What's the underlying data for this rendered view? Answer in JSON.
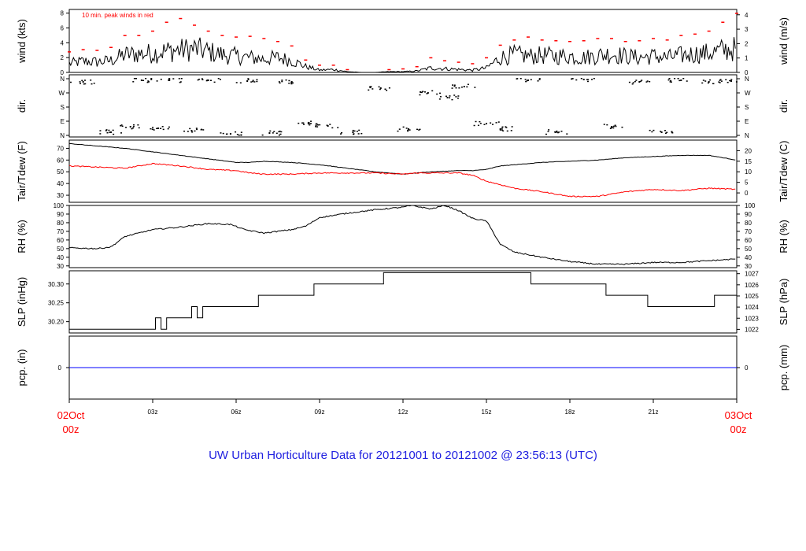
{
  "title": "UW Urban Horticulture Data for 20121001  to  20121002 @ 23:56:13  (UTC)",
  "x_axis": {
    "start_date": "02Oct",
    "start_time": "00z",
    "end_date": "03Oct",
    "end_time": "00z",
    "ticks": [
      "03z",
      "06z",
      "09z",
      "12z",
      "15z",
      "18z",
      "21z"
    ]
  },
  "colors": {
    "primary": "#000000",
    "secondary": "#ff0000",
    "precip": "#0000ff",
    "title": "#2020e0"
  },
  "chart_data": [
    {
      "type": "line",
      "panel": "wind",
      "ylabel_left": "wind (kts)",
      "ylabel_right": "wind (m/s)",
      "annotation": "10 min. peak winds in red",
      "ylim_left": [
        0,
        8.5
      ],
      "yticks_left": [
        "0",
        "2",
        "4",
        "6",
        "8"
      ],
      "ylim_right": [
        0,
        4.37
      ],
      "yticks_right": [
        "0",
        "1",
        "2",
        "3",
        "4"
      ],
      "x_hours": [
        0,
        0.5,
        1,
        1.5,
        2,
        2.5,
        3,
        3.5,
        4,
        4.5,
        5,
        5.5,
        6,
        6.5,
        7,
        7.5,
        8,
        8.5,
        9,
        9.5,
        10,
        10.5,
        11,
        11.5,
        12,
        12.5,
        13,
        13.5,
        14,
        14.5,
        15,
        15.5,
        16,
        16.5,
        17,
        17.5,
        18,
        18.5,
        19,
        19.5,
        20,
        20.5,
        21,
        21.5,
        22,
        22.5,
        23,
        23.5,
        24
      ],
      "series": [
        {
          "name": "wind",
          "color": "#000000",
          "values": [
            1.2,
            1.5,
            1.4,
            1.6,
            2.4,
            2.5,
            2.6,
            2.9,
            3.0,
            3.2,
            2.8,
            2.4,
            2.2,
            2.0,
            1.8,
            2.0,
            1.6,
            0.8,
            0.3,
            0.4,
            0.1,
            0.0,
            0.0,
            0.1,
            0.1,
            0.2,
            0.6,
            0.5,
            0.4,
            0.3,
            0.6,
            2.0,
            2.4,
            2.2,
            2.3,
            2.2,
            2.2,
            2.0,
            2.3,
            2.5,
            2.2,
            2.0,
            2.2,
            2.0,
            2.3,
            2.5,
            2.6,
            3.0,
            3.2
          ]
        },
        {
          "name": "10 min. peak winds",
          "color": "#ff0000",
          "values": [
            2.8,
            3.1,
            3.0,
            3.4,
            5.0,
            5.0,
            5.6,
            6.8,
            7.3,
            6.4,
            5.6,
            5.0,
            4.8,
            4.9,
            4.6,
            4.2,
            3.6,
            1.7,
            1.0,
            1.0,
            0.4,
            0.0,
            0.0,
            0.4,
            0.5,
            0.8,
            2.0,
            1.6,
            1.4,
            1.2,
            2.0,
            3.7,
            4.4,
            4.8,
            4.4,
            4.3,
            4.2,
            4.3,
            4.6,
            4.6,
            4.2,
            4.3,
            4.6,
            4.4,
            5.0,
            5.2,
            5.6,
            6.8,
            8.0
          ]
        }
      ]
    },
    {
      "type": "scatter",
      "panel": "dir",
      "ylabel_left": "dir.",
      "ylabel_right": "dir.",
      "yticks_left": [
        "N",
        "W",
        "S",
        "E",
        "N"
      ],
      "yticks_right": [
        "N",
        "W",
        "S",
        "E",
        "N"
      ],
      "ylim": [
        0,
        360
      ],
      "x_hours": [
        0.5,
        1.5,
        2.2,
        2.6,
        3.2,
        3.6,
        4.4,
        5.0,
        5.8,
        6.4,
        7.2,
        8.0,
        8.6,
        9.3,
        10.2,
        11.2,
        12.2,
        12.9,
        13.6,
        14.2,
        15.0,
        15.5,
        16.5,
        17.5,
        18.5,
        19.5,
        20.5,
        21.3,
        22.0,
        23.0,
        23.8
      ],
      "values": [
        340,
        20,
        55,
        350,
        45,
        350,
        30,
        350,
        10,
        345,
        15,
        340,
        75,
        60,
        20,
        300,
        40,
        270,
        240,
        310,
        75,
        40,
        350,
        20,
        355,
        55,
        340,
        20,
        350,
        340,
        345
      ]
    },
    {
      "type": "line",
      "panel": "temp",
      "ylabel_left": "Tair/Tdew (F)",
      "ylabel_right": "Tair/Tdew (C)",
      "ylim_left": [
        24,
        77
      ],
      "yticks_left": [
        "30",
        "40",
        "50",
        "60",
        "70"
      ],
      "yticks_right": [
        "0",
        "5",
        "10",
        "15",
        "20"
      ],
      "x_hours": [
        0,
        1,
        2,
        3,
        4,
        5,
        6,
        6.5,
        7,
        8,
        9,
        10,
        11,
        12,
        12.5,
        13,
        14,
        14.5,
        15,
        15.5,
        16,
        17,
        18,
        19,
        20,
        21,
        22,
        23,
        24
      ],
      "series": [
        {
          "name": "Tair",
          "color": "#000000",
          "values": [
            74,
            72,
            70,
            67,
            64,
            61,
            58,
            58,
            59,
            58,
            56,
            53,
            50,
            48,
            49,
            50,
            51,
            51,
            52,
            55,
            56,
            58,
            59,
            60,
            62,
            63,
            64,
            64,
            60
          ]
        },
        {
          "name": "Tdew",
          "color": "#ff0000",
          "values": [
            55,
            54,
            53,
            57,
            55,
            52,
            51,
            49,
            48,
            48,
            49,
            49,
            49,
            48,
            49,
            49,
            49,
            47,
            42,
            39,
            36,
            33,
            29,
            29,
            33,
            35,
            34,
            36,
            35
          ]
        }
      ]
    },
    {
      "type": "line",
      "panel": "rh",
      "ylabel_left": "RH (%)",
      "ylabel_right": "RH (%)",
      "ylim": [
        28,
        100
      ],
      "yticks": [
        "30",
        "40",
        "50",
        "60",
        "70",
        "80",
        "90",
        "100"
      ],
      "x_hours": [
        0,
        1,
        1.5,
        2,
        3,
        4,
        5,
        5.8,
        6.3,
        7,
        8,
        8.5,
        9,
        10,
        11,
        12,
        12.3,
        13,
        13.5,
        14,
        14.5,
        15,
        15.5,
        16,
        17,
        18,
        19,
        20,
        21,
        22,
        23,
        24
      ],
      "series": [
        {
          "name": "RH",
          "color": "#000000",
          "values": [
            51,
            50,
            52,
            64,
            72,
            75,
            79,
            78,
            72,
            68,
            72,
            76,
            86,
            91,
            95,
            98,
            100,
            96,
            100,
            94,
            85,
            82,
            55,
            46,
            40,
            35,
            32,
            32,
            34,
            34,
            36,
            38
          ]
        }
      ]
    },
    {
      "type": "line",
      "panel": "slp",
      "ylabel_left": "SLP (inHg)",
      "ylabel_right": "SLP (hPa)",
      "ylim_left": [
        30.17,
        30.335
      ],
      "yticks_left": [
        "30.20",
        "30.25",
        "30.30"
      ],
      "yticks_right": [
        "1022",
        "1023",
        "1024",
        "1025",
        "1026",
        "1027"
      ],
      "x_hours": [
        0,
        3.1,
        3.3,
        3.5,
        4.4,
        4.6,
        4.8,
        5.0,
        6.8,
        8.8,
        11.3,
        13.5,
        16.6,
        19.3,
        20.8,
        23.2,
        24
      ],
      "series": [
        {
          "name": "SLP",
          "color": "#000000",
          "values": [
            30.18,
            30.21,
            30.18,
            30.21,
            30.24,
            30.21,
            30.24,
            30.24,
            30.27,
            30.3,
            30.33,
            30.33,
            30.3,
            30.27,
            30.24,
            30.27,
            30.27
          ]
        }
      ]
    },
    {
      "type": "line",
      "panel": "pcp",
      "ylabel_left": "pcp. (in)",
      "ylabel_right": "pcp. (mm)",
      "yticks_left": [
        "0"
      ],
      "yticks_right": [
        "0"
      ],
      "series": [
        {
          "name": "precipitation",
          "color": "#0000ff",
          "values": [
            0,
            0
          ]
        }
      ]
    }
  ]
}
